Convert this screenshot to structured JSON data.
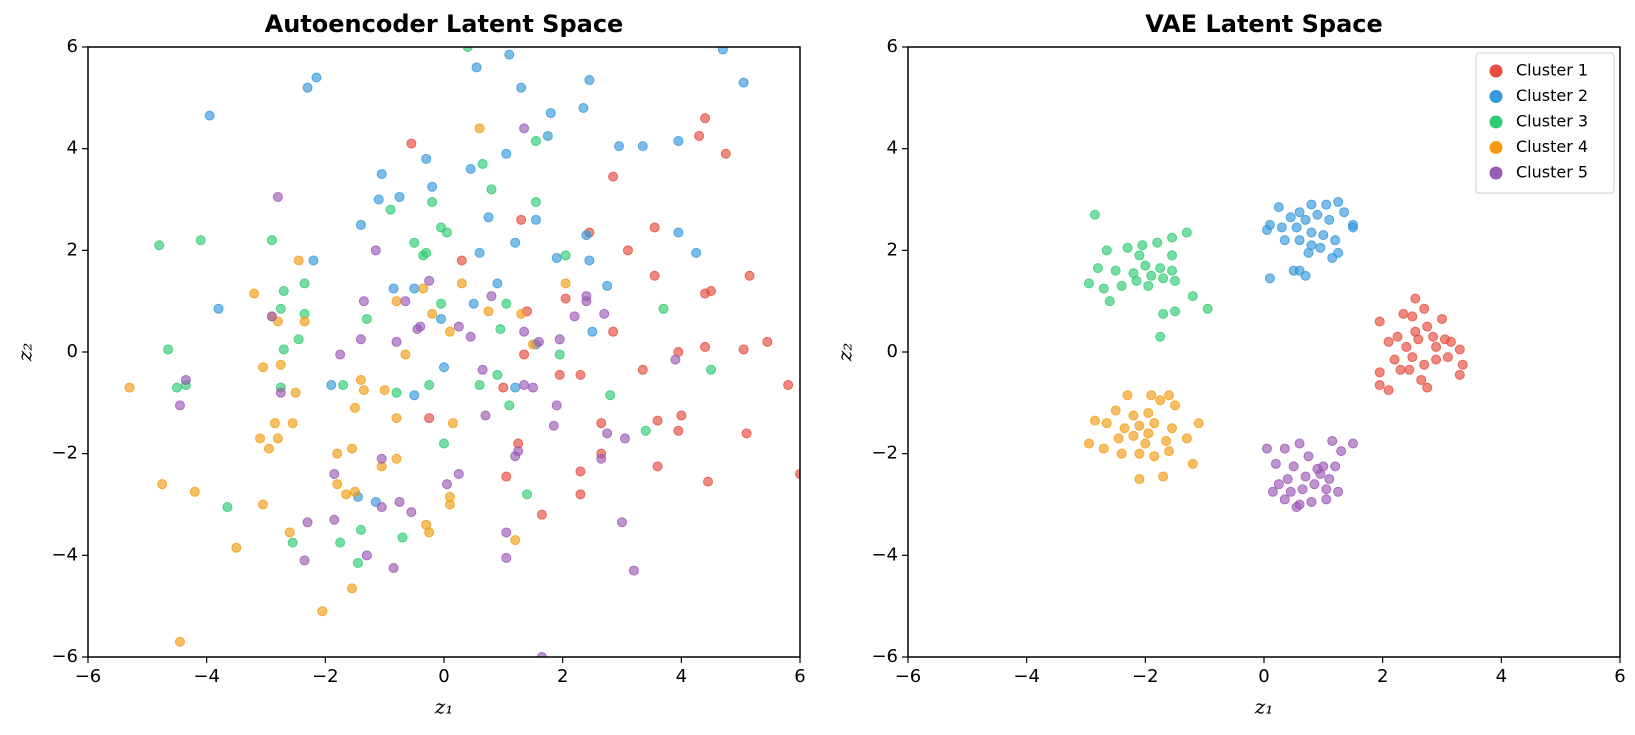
{
  "chart_data": [
    {
      "type": "scatter",
      "title": "Autoencoder Latent Space",
      "x_label": "z₁",
      "y_label": "z₂",
      "xlim": [
        -6,
        6
      ],
      "ylim": [
        -6,
        6
      ],
      "xticks": [
        {
          "value": -6,
          "label": "−6"
        },
        {
          "value": -4,
          "label": "−4"
        },
        {
          "value": -2,
          "label": "−2"
        },
        0,
        2,
        4,
        6
      ],
      "yticks": [
        {
          "value": -6,
          "label": "−6"
        },
        {
          "value": -4,
          "label": "−4"
        },
        {
          "value": -2,
          "label": "−2"
        },
        0,
        2,
        4,
        6
      ],
      "series": [
        {
          "color": "#e74c3c",
          "x": [
            4.4,
            4.3,
            4.75,
            2.85,
            1.3,
            3.55,
            2.45,
            3.1,
            5.15,
            3.55,
            4.5,
            4.4,
            2.05,
            1.4,
            2.85,
            3.95,
            5.45,
            5.05,
            4.4,
            3.35,
            2.3,
            1.95,
            1.35,
            5.8,
            4,
            3.6,
            3.95,
            5.1,
            2.65,
            2.65,
            1.25,
            1.05,
            2.3,
            4.45,
            2.3,
            1.65,
            6,
            -0.55,
            0.3,
            -0.25,
            1,
            3.6
          ],
          "y": [
            4.6,
            4.25,
            3.9,
            3.45,
            2.6,
            2.45,
            2.35,
            2,
            1.5,
            1.5,
            1.2,
            1.15,
            1.05,
            0.8,
            0.4,
            0,
            0.2,
            0.05,
            0.1,
            -0.35,
            -0.45,
            -0.45,
            -0.05,
            -0.65,
            -1.25,
            -1.35,
            -1.55,
            -1.6,
            -1.4,
            -2,
            -1.8,
            -2.45,
            -2.35,
            -2.55,
            -2.8,
            -3.2,
            -2.4,
            4.1,
            1.8,
            -1.3,
            -0.7,
            -2.25
          ]
        },
        {
          "color": "#3498db",
          "x": [
            -3.95,
            -2.3,
            -2.15,
            0.55,
            1.1,
            4.7,
            5.05,
            2.45,
            1.3,
            1.8,
            2.35,
            1.75,
            3.35,
            2.95,
            3.95,
            1.05,
            0.45,
            -0.3,
            -1.05,
            -0.75,
            -1.1,
            -0.2,
            1.55,
            0.75,
            -1.4,
            2.4,
            3.95,
            1.2,
            0.6,
            4.25,
            -2.2,
            2.45,
            1.9,
            -3.8,
            -0.85,
            -0.5,
            0.9,
            2.75,
            0.5,
            -0.05,
            2.5,
            1.55,
            -1.9,
            0,
            -0.5,
            1.2,
            -1.45,
            -1.15
          ],
          "y": [
            4.65,
            5.2,
            5.4,
            5.6,
            5.85,
            5.95,
            5.3,
            5.35,
            5.2,
            4.7,
            4.8,
            4.25,
            4.05,
            4.05,
            4.15,
            3.9,
            3.6,
            3.8,
            3.5,
            3.05,
            3,
            3.25,
            2.6,
            2.65,
            2.5,
            2.3,
            2.35,
            2.15,
            1.95,
            1.95,
            1.8,
            1.8,
            1.85,
            0.85,
            1.25,
            1.25,
            1.35,
            1.3,
            0.95,
            0.65,
            0.4,
            0.15,
            -0.65,
            -0.3,
            -0.85,
            -0.7,
            -2.85,
            -2.95
          ]
        },
        {
          "color": "#2ecc71",
          "x": [
            -4.8,
            -4.1,
            -2.9,
            -2.35,
            -2.7,
            -2.75,
            -2.35,
            -2.45,
            -2.7,
            -4.65,
            -4.5,
            -4.35,
            -2.75,
            -1.7,
            -3.65,
            -2.55,
            -1.75,
            -1.4,
            -1.45,
            -0.7,
            0.4,
            -0.9,
            -0.2,
            0.65,
            0.8,
            1.55,
            1.55,
            -0.5,
            -0.3,
            -0.05,
            0.05,
            -0.35,
            2.05,
            -1.3,
            -0.05,
            0.95,
            0.6,
            0.9,
            -0.8,
            -0.25,
            3.7,
            4.5,
            2.8,
            3.4,
            1.4,
            0,
            1.1,
            1.95,
            1.05
          ],
          "y": [
            2.1,
            2.2,
            2.2,
            1.35,
            1.2,
            0.85,
            0.75,
            0.25,
            0.05,
            0.05,
            -0.7,
            -0.65,
            -0.7,
            -0.65,
            -3.05,
            -3.75,
            -3.75,
            -3.5,
            -4.15,
            -3.65,
            6,
            2.8,
            2.95,
            3.7,
            3.2,
            4.15,
            2.95,
            2.15,
            1.95,
            2.45,
            2.35,
            1.9,
            1.9,
            0.65,
            0.95,
            0.45,
            -0.65,
            -0.45,
            -0.8,
            -0.65,
            0.85,
            -0.35,
            -0.85,
            -1.55,
            -2.8,
            -1.8,
            -1.05,
            -0.05,
            0.95
          ]
        },
        {
          "color": "#f39c12",
          "x": [
            -5.3,
            -4.75,
            -4.2,
            -3.5,
            -3.2,
            -3.05,
            -2.75,
            -2.9,
            -2.8,
            -2.5,
            -2.45,
            -2.35,
            -2.55,
            -2.85,
            -3.1,
            -2.95,
            -2.8,
            -3.05,
            -2.6,
            -2.05,
            -1.55,
            -4.45,
            -1.8,
            -1.55,
            -1.8,
            -1.65,
            -1.5,
            -1.35,
            -1.4,
            -1.5,
            -0.8,
            -0.35,
            -0.2,
            0.1,
            0.3,
            0.6,
            0.75,
            1.3,
            2.05,
            -0.3,
            -0.25,
            0.1,
            0.1,
            1.2,
            0.15,
            -0.8,
            -0.8,
            -1.05,
            -1,
            1.5,
            -0.65
          ],
          "y": [
            -0.7,
            -2.6,
            -2.75,
            -3.85,
            1.15,
            -0.3,
            -0.25,
            0.7,
            0.6,
            -0.8,
            1.8,
            0.6,
            -1.4,
            -1.4,
            -1.7,
            -1.9,
            -1.7,
            -3,
            -3.55,
            -5.1,
            -4.65,
            -5.7,
            -2,
            -1.9,
            -2.6,
            -2.8,
            -2.75,
            -0.75,
            -0.55,
            -1.1,
            1,
            1.25,
            0.75,
            0.4,
            1.35,
            4.4,
            0.8,
            0.75,
            1.35,
            -3.4,
            -3.55,
            -2.85,
            -3,
            -3.7,
            -1.4,
            -1.3,
            -2.1,
            -2.25,
            -0.75,
            0.15,
            -0.05
          ]
        },
        {
          "color": "#9b59b6",
          "x": [
            -2.8,
            -1.15,
            -2.9,
            -2.75,
            -4.35,
            -4.45,
            -1.75,
            -1.4,
            -1.35,
            -0.8,
            -0.65,
            -0.45,
            -0.25,
            -0.4,
            0.25,
            0.45,
            0.8,
            1.35,
            1.35,
            1.6,
            1.35,
            1.5,
            0.7,
            0.25,
            0.05,
            -1.05,
            -1.85,
            -2.3,
            -2.35,
            -1.85,
            -1.3,
            -0.85,
            -0.75,
            -0.55,
            -1.05,
            1.05,
            1.05,
            1.25,
            1.2,
            1.9,
            1.85,
            2.65,
            2.75,
            3.05,
            3,
            3.2,
            3.9,
            1.65,
            2.4,
            2.2,
            2.7,
            2.4,
            1.95,
            0.65
          ],
          "y": [
            3.05,
            2,
            0.7,
            -0.8,
            -0.55,
            -1.05,
            -0.05,
            0.25,
            1,
            0.2,
            1,
            0.45,
            1.4,
            0.5,
            0.5,
            0.3,
            1.1,
            0.4,
            4.4,
            0.2,
            -0.65,
            -0.7,
            -1.25,
            -2.4,
            -2.6,
            -2.1,
            -2.4,
            -3.35,
            -4.1,
            -3.3,
            -4,
            -4.25,
            -2.95,
            -3.15,
            -3.05,
            -3.55,
            -4.05,
            -1.95,
            -2.05,
            -1.05,
            -1.45,
            -2.1,
            -1.6,
            -1.7,
            -3.35,
            -4.3,
            -0.15,
            -6,
            1,
            0.7,
            0.75,
            1.1,
            0.25,
            -0.35
          ]
        }
      ]
    },
    {
      "type": "scatter",
      "title": "VAE Latent Space",
      "x_label": "z₁",
      "y_label": "z₂",
      "xlim": [
        -6,
        6
      ],
      "ylim": [
        -6,
        6
      ],
      "xticks": [
        {
          "value": -6,
          "label": "−6"
        },
        {
          "value": -4,
          "label": "−4"
        },
        {
          "value": -2,
          "label": "−2"
        },
        0,
        2,
        4,
        6
      ],
      "yticks": [
        {
          "value": -6,
          "label": "−6"
        },
        {
          "value": -4,
          "label": "−4"
        },
        {
          "value": -2,
          "label": "−2"
        },
        0,
        2,
        4,
        6
      ],
      "legend": "upper right",
      "series": [
        {
          "name": "Cluster 1",
          "color": "#e74c3c",
          "x": [
            2.55,
            2.7,
            2.5,
            2.35,
            2.75,
            3,
            1.95,
            2.1,
            2.25,
            2.4,
            2.6,
            2.85,
            3.05,
            3.15,
            3.3,
            2.5,
            2.3,
            2.45,
            2.7,
            2.9,
            3.1,
            3.35,
            3.3,
            1.95,
            1.95,
            2.1,
            2.65,
            2.75,
            2.2,
            2.55,
            2.9
          ],
          "y": [
            1.05,
            0.85,
            0.7,
            0.75,
            0.5,
            0.65,
            0.6,
            0.2,
            0.3,
            0.1,
            0.25,
            0.3,
            0.25,
            0.2,
            0.05,
            -0.1,
            -0.35,
            -0.35,
            -0.25,
            -0.15,
            -0.1,
            -0.25,
            -0.45,
            -0.4,
            -0.65,
            -0.75,
            -0.55,
            -0.7,
            -0.15,
            0.4,
            0.1
          ]
        },
        {
          "name": "Cluster 2",
          "color": "#3498db",
          "x": [
            0.8,
            1.05,
            1.25,
            1.35,
            0.25,
            0.45,
            0.6,
            0.9,
            0.7,
            1.1,
            0.55,
            0.3,
            0.1,
            0.05,
            0.35,
            0.6,
            0.8,
            1,
            1.2,
            1.5,
            1.5,
            1.25,
            1.15,
            0.8,
            0.6,
            0.7,
            0.5,
            0.1,
            0.95,
            0.75
          ],
          "y": [
            2.9,
            2.9,
            2.95,
            2.75,
            2.85,
            2.65,
            2.75,
            2.7,
            2.6,
            2.6,
            2.45,
            2.45,
            2.5,
            2.4,
            2.2,
            2.2,
            2.35,
            2.3,
            2.2,
            2.5,
            2.45,
            1.95,
            1.85,
            2.1,
            1.6,
            1.5,
            1.6,
            1.45,
            2.05,
            1.95
          ]
        },
        {
          "name": "Cluster 3",
          "color": "#2ecc71",
          "x": [
            -2.85,
            -2.65,
            -2.3,
            -2.05,
            -1.8,
            -1.55,
            -1.3,
            -2.8,
            -2.5,
            -2.2,
            -2,
            -1.75,
            -1.55,
            -2.95,
            -2.7,
            -2.4,
            -2.15,
            -1.95,
            -1.7,
            -1.5,
            -1.9,
            -2.6,
            -1.2,
            -1.7,
            -1.5,
            -0.95,
            -1.75,
            -2.1,
            -1.55
          ],
          "y": [
            2.7,
            2,
            2.05,
            2.1,
            2.15,
            2.25,
            2.35,
            1.65,
            1.6,
            1.55,
            1.7,
            1.65,
            1.9,
            1.35,
            1.25,
            1.3,
            1.4,
            1.3,
            1.45,
            1.4,
            1.5,
            1,
            1.1,
            0.75,
            0.8,
            0.85,
            0.3,
            1.9,
            1.6
          ]
        },
        {
          "name": "Cluster 4",
          "color": "#f39c12",
          "x": [
            -2.3,
            -1.9,
            -1.6,
            -1.75,
            -2.5,
            -2.2,
            -1.95,
            -1.5,
            -2.85,
            -2.65,
            -2.35,
            -2.1,
            -1.85,
            -1.55,
            -1.1,
            -2.45,
            -2.2,
            -1.95,
            -1.65,
            -1.3,
            -2.95,
            -2.4,
            -2.1,
            -1.85,
            -1.6,
            -2.7,
            -2.1,
            -1.7,
            -1.2,
            -2
          ],
          "y": [
            -0.85,
            -0.85,
            -0.85,
            -0.95,
            -1.15,
            -1.25,
            -1.2,
            -1.05,
            -1.35,
            -1.4,
            -1.5,
            -1.45,
            -1.4,
            -1.5,
            -1.4,
            -1.7,
            -1.65,
            -1.6,
            -1.75,
            -1.7,
            -1.8,
            -2,
            -2,
            -2.05,
            -1.95,
            -1.9,
            -2.5,
            -2.45,
            -2.2,
            -1.8
          ]
        },
        {
          "name": "Cluster 5",
          "color": "#9b59b6",
          "x": [
            0.05,
            0.35,
            0.6,
            1.15,
            1.5,
            1.3,
            0.2,
            0.5,
            0.75,
            1,
            1.2,
            0.4,
            0.7,
            0.95,
            1.1,
            0.85,
            0.15,
            0.45,
            0.65,
            1.05,
            1.25,
            0.35,
            0.6,
            0.8,
            1.05,
            0.55,
            0.9,
            0.25
          ],
          "y": [
            -1.9,
            -1.9,
            -1.8,
            -1.75,
            -1.8,
            -1.95,
            -2.2,
            -2.25,
            -2.05,
            -2.25,
            -2.25,
            -2.5,
            -2.45,
            -2.4,
            -2.5,
            -2.6,
            -2.75,
            -2.75,
            -2.7,
            -2.7,
            -2.75,
            -2.9,
            -3,
            -2.95,
            -2.9,
            -3.05,
            -2.3,
            -2.6
          ]
        }
      ]
    }
  ]
}
